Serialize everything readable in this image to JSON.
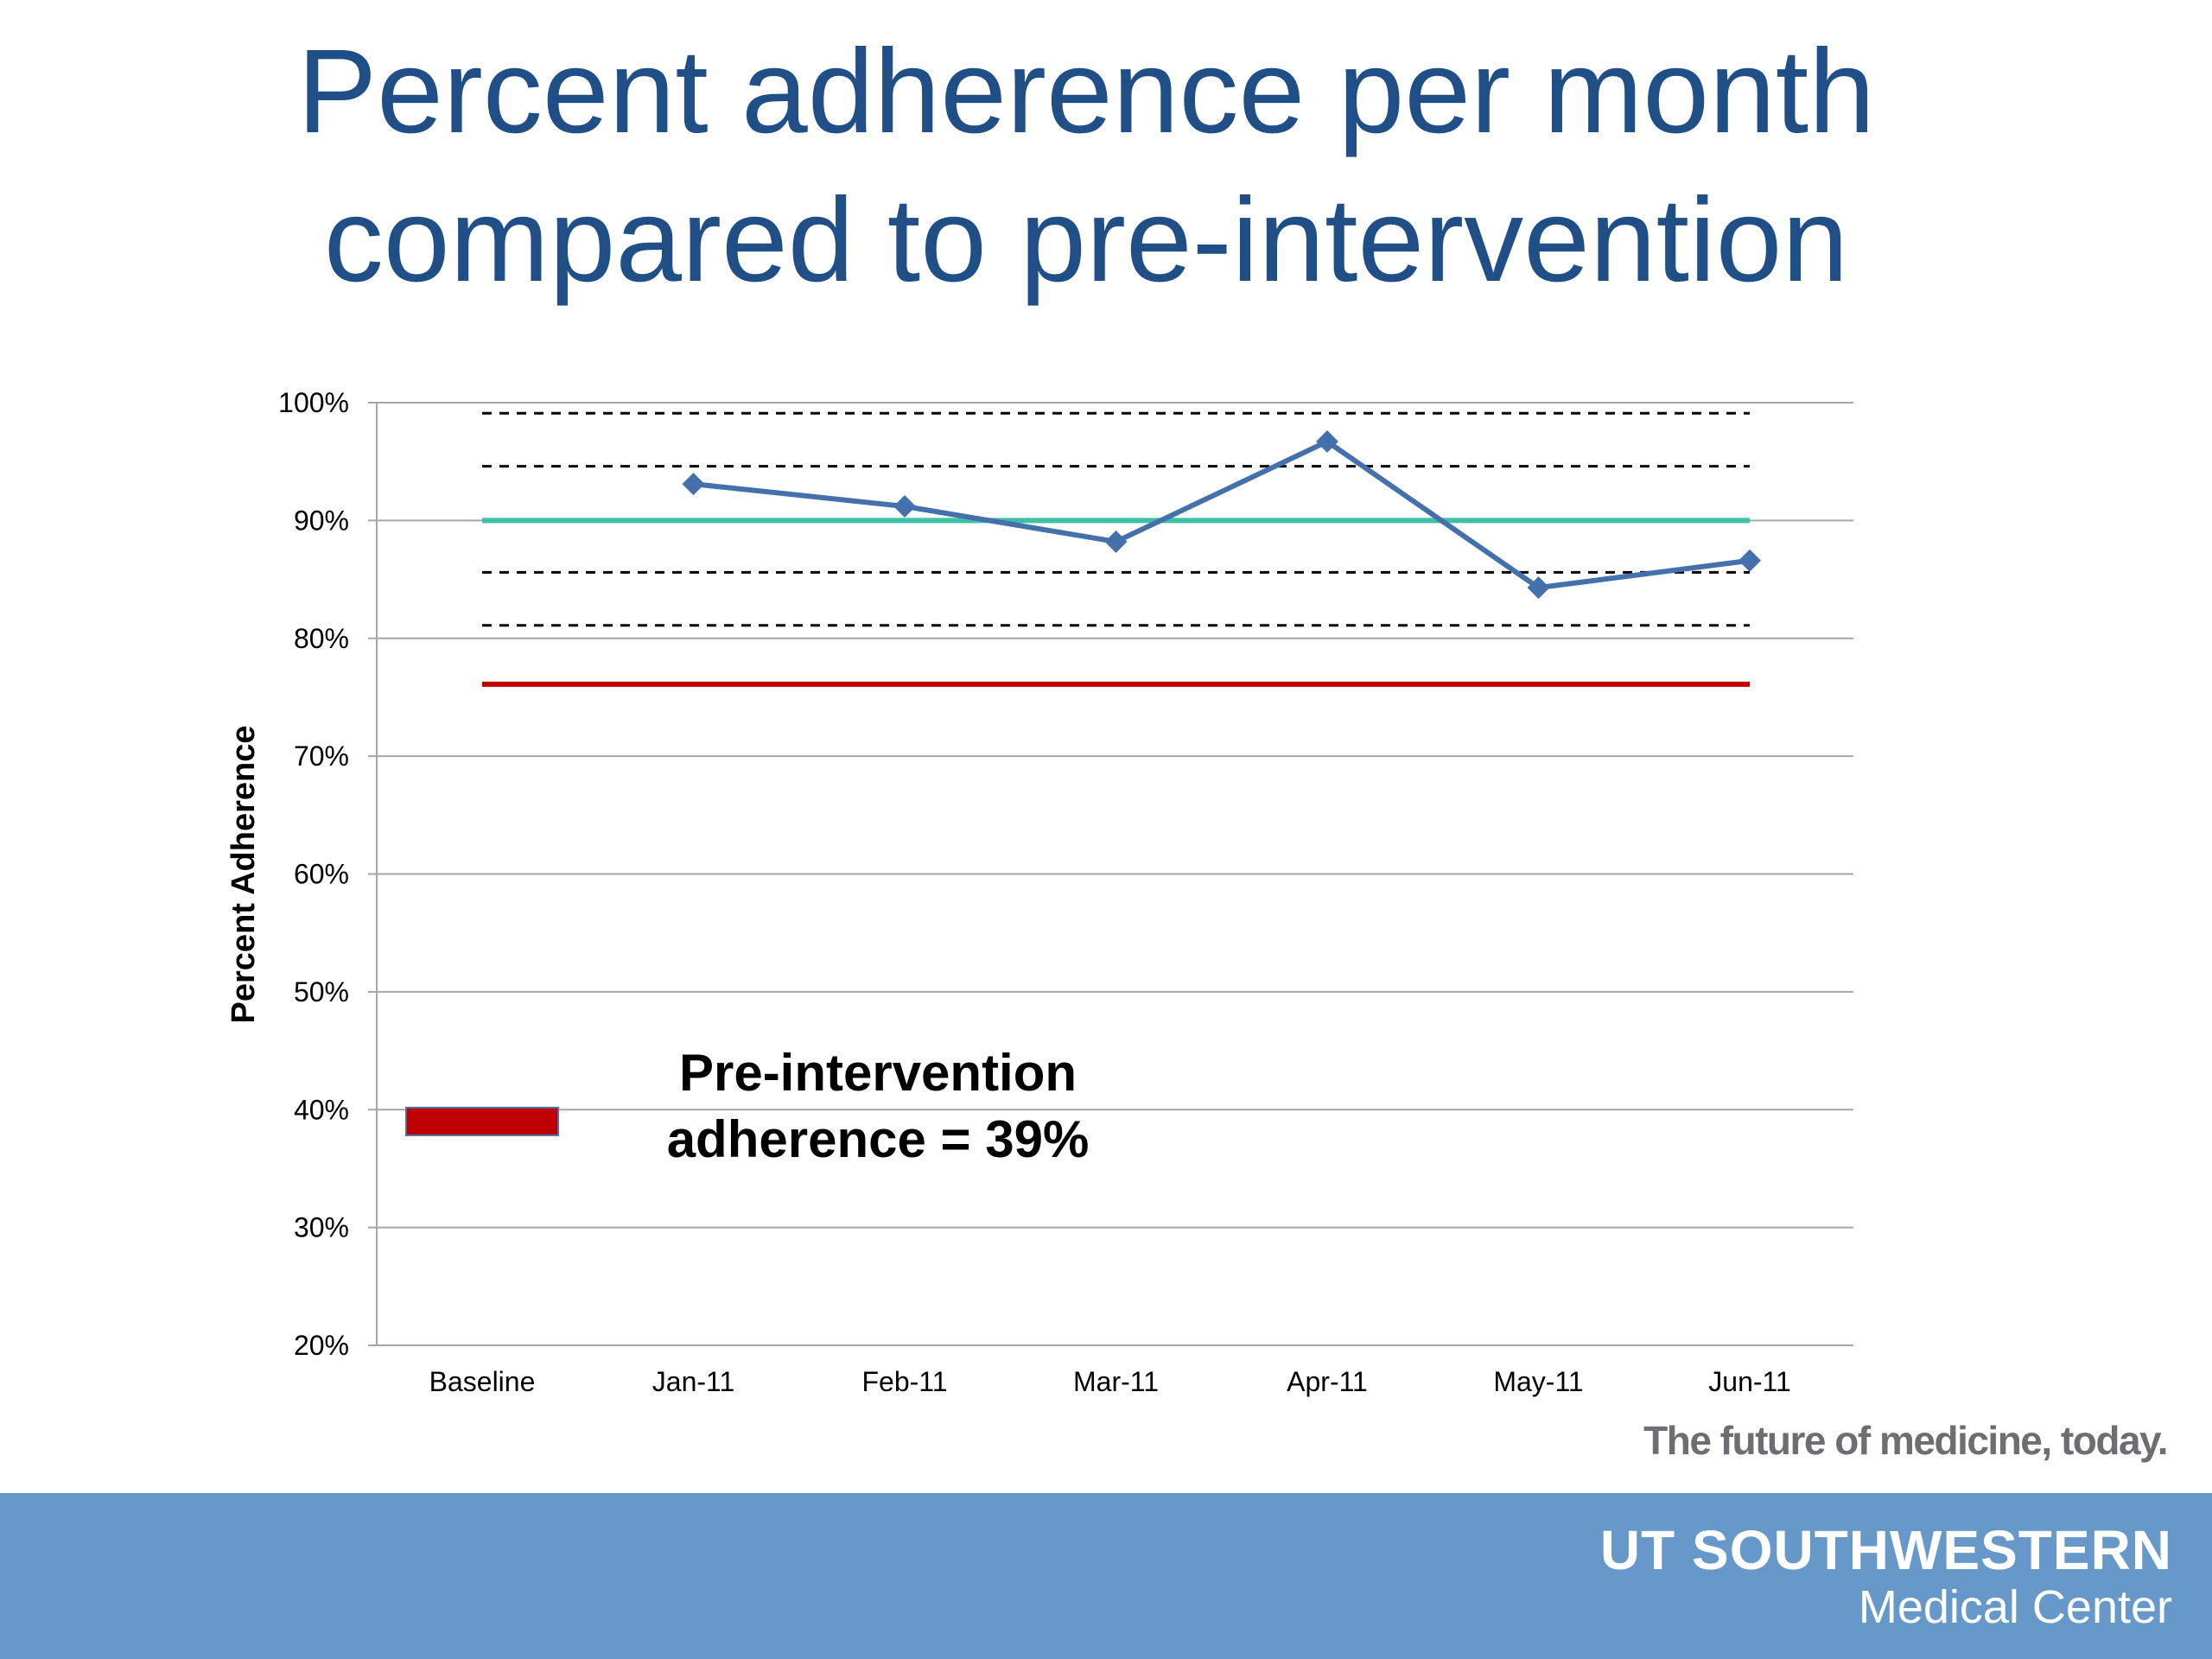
{
  "slide": {
    "title_line1": "Percent adherence per month",
    "title_line2": "compared to pre-intervention",
    "tagline": "The future of medicine, today.",
    "footer_org_name": "UT SOUTHWESTERN",
    "footer_org_sub": "Medical Center"
  },
  "colors": {
    "title": "#1f4f86",
    "series": "#4470ab",
    "goal_line": "#3fbfa6",
    "baseline_line": "#c00000",
    "baseline_bar": "#c00000",
    "footer": "#6699c9"
  },
  "chart_data": {
    "type": "line",
    "title": "",
    "ylabel": "Percent Adherence",
    "xlabel": "",
    "categories": [
      "Baseline",
      "Jan-11",
      "Feb-11",
      "Mar-11",
      "Apr-11",
      "May-11",
      "Jun-11"
    ],
    "yticks": [
      "20%",
      "30%",
      "40%",
      "50%",
      "60%",
      "70%",
      "80%",
      "90%",
      "100%"
    ],
    "ylim": [
      20,
      100
    ],
    "grid": true,
    "series": [
      {
        "values": [
          null,
          93.1,
          91.2,
          88.2,
          96.7,
          84.3,
          86.6
        ]
      }
    ],
    "reference_lines": [
      {
        "style": "solid",
        "color": "#3fbfa6",
        "y": 90
      },
      {
        "style": "solid",
        "color": "#c00000",
        "y": 76.1
      },
      {
        "style": "dashed",
        "color": "#000000",
        "y": 99.1
      },
      {
        "style": "dashed",
        "color": "#000000",
        "y": 94.6
      },
      {
        "style": "dashed",
        "color": "#000000",
        "y": 85.6
      },
      {
        "style": "dashed",
        "color": "#000000",
        "y": 81.1
      }
    ],
    "baseline_bar": {
      "category": "Baseline",
      "value": 39
    },
    "annotation_line1": "Pre-intervention",
    "annotation_line2": "adherence = 39%"
  }
}
